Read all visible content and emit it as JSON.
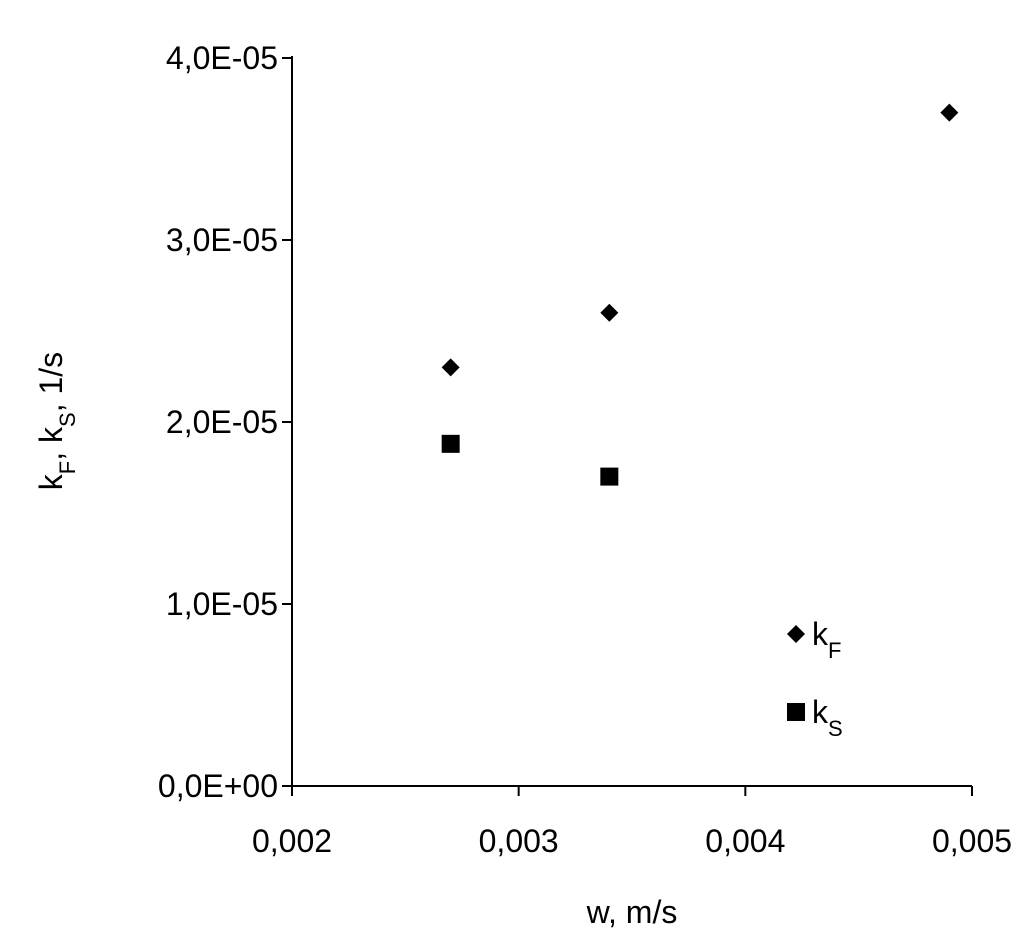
{
  "chart_data": {
    "type": "scatter",
    "xlabel": "w, m/s",
    "ylabel": "k_F, k_S, 1/s",
    "xlim": [
      0.002,
      0.005
    ],
    "ylim": [
      0,
      4e-05
    ],
    "x_ticks": [
      0.002,
      0.003,
      0.004,
      0.005
    ],
    "x_tick_labels": [
      "0,002",
      "0,003",
      "0,004",
      "0,005"
    ],
    "y_ticks": [
      0,
      1e-05,
      2e-05,
      3e-05,
      4e-05
    ],
    "y_tick_labels": [
      "0,0E+00",
      "1,0E-05",
      "2,0E-05",
      "3,0E-05",
      "4,0E-05"
    ],
    "grid": false,
    "legend_position": "bottom-right",
    "series": [
      {
        "name": "k_F",
        "marker": "diamond",
        "color": "#000000",
        "x": [
          0.0027,
          0.0034,
          0.0049
        ],
        "y": [
          2.3e-05,
          2.6e-05,
          3.7e-05
        ]
      },
      {
        "name": "k_S",
        "marker": "square",
        "color": "#000000",
        "x": [
          0.0027,
          0.0034
        ],
        "y": [
          1.88e-05,
          1.7e-05
        ]
      }
    ]
  }
}
